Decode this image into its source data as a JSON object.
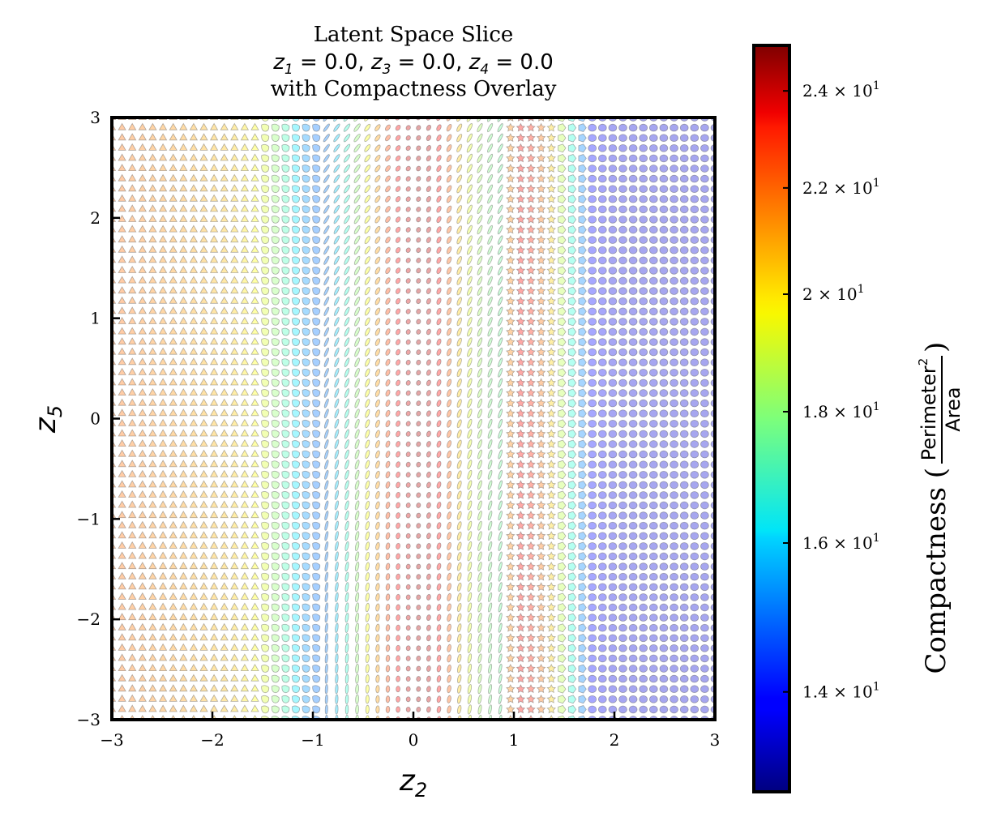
{
  "chart_data": {
    "type": "scatter",
    "title": {
      "line1": "Latent Space Slice",
      "line2": "z1 = 0.0, z3 = 0.0, z4 = 0.0",
      "line3": "with Compactness Overlay"
    },
    "xlabel": "z2",
    "ylabel": "z5",
    "xlim": [
      -3,
      3
    ],
    "ylim": [
      -3,
      3
    ],
    "x_ticks": [
      "−3",
      "−2",
      "−1",
      "0",
      "1",
      "2",
      "3"
    ],
    "y_ticks": [
      "−3",
      "−2",
      "−1",
      "0",
      "1",
      "2",
      "3"
    ],
    "grid": false,
    "grid_points_per_axis": 60,
    "marker_alpha": 0.35,
    "shape_regions": [
      {
        "shape": "triangle",
        "x_from": -3.0,
        "x_to": -1.55
      },
      {
        "shape": "blob",
        "x_from": -1.55,
        "x_to": -0.95
      },
      {
        "shape": "ellipse",
        "x_from": -0.95,
        "x_to": 0.9
      },
      {
        "shape": "star",
        "x_from": 0.9,
        "x_to": 1.45
      },
      {
        "shape": "pentagon",
        "x_from": 1.45,
        "x_to": 1.75
      },
      {
        "shape": "circle",
        "x_from": 1.75,
        "x_to": 3.0
      }
    ],
    "compactness_profile": {
      "x": [
        -3.0,
        -2.3,
        -1.8,
        -1.5,
        -1.3,
        -1.1,
        -0.9,
        -0.7,
        -0.5,
        -0.3,
        -0.1,
        0.1,
        0.3,
        0.5,
        0.7,
        0.9,
        1.0,
        1.15,
        1.3,
        1.45,
        1.6,
        1.75,
        2.0,
        2.5,
        3.0
      ],
      "compactness": [
        21.5,
        20.8,
        20.2,
        19.2,
        17.5,
        15.5,
        14.8,
        16.5,
        18.8,
        21.5,
        23.5,
        24.5,
        22.5,
        19.5,
        18.0,
        17.5,
        23.0,
        22.8,
        21.0,
        19.0,
        16.5,
        14.0,
        13.6,
        13.5,
        13.5
      ]
    },
    "colorbar": {
      "label": "Compactness (",
      "label_close": ")",
      "fraction_numerator": "Perimeter",
      "fraction_superscript": "2",
      "fraction_denominator": "Area",
      "scale": "log",
      "colormap": "jet",
      "range": [
        12.8,
        25.0
      ],
      "ticks": [
        {
          "value": 14,
          "mantissa": "1.4",
          "label": "1.4 × 10^1"
        },
        {
          "value": 16,
          "mantissa": "1.6",
          "label": "1.6 × 10^1"
        },
        {
          "value": 18,
          "mantissa": "1.8",
          "label": "1.8 × 10^1"
        },
        {
          "value": 20,
          "mantissa": "2",
          "label": "2 × 10^1"
        },
        {
          "value": 22,
          "mantissa": "2.2",
          "label": "2.2 × 10^1"
        },
        {
          "value": 24,
          "mantissa": "2.4",
          "label": "2.4 × 10^1"
        }
      ],
      "exponent_base": "10",
      "exponent": "1"
    },
    "colors": {
      "frame": "#000000",
      "marker_edge": "#555555"
    }
  }
}
